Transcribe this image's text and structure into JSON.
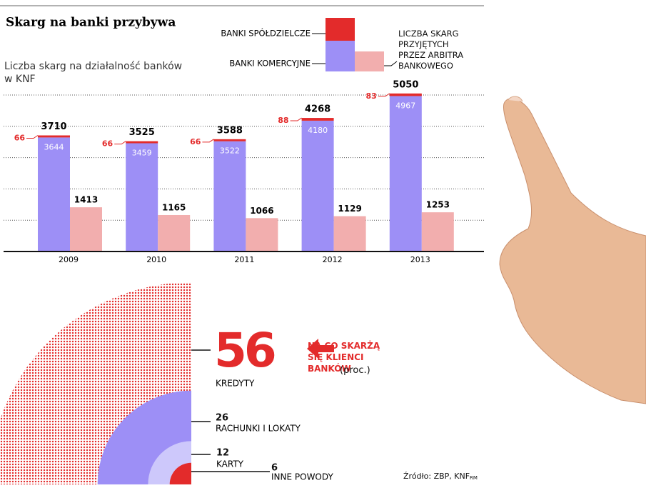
{
  "title": "Skarg na banki przybywa",
  "chart_data": [
    {
      "type": "bar",
      "subtitle": "Liczba skarg na działalność banków w KNF",
      "categories": [
        "2009",
        "2010",
        "2011",
        "2012",
        "2013"
      ],
      "series": [
        {
          "name": "BANKI KOMERCYJNE",
          "color": "#9d8ff6",
          "stack": "banki",
          "values": [
            3644,
            3459,
            3522,
            4180,
            4967
          ]
        },
        {
          "name": "BANKI SPÓŁDZIELCZE",
          "color": "#e32b2b",
          "stack": "banki",
          "values": [
            66,
            66,
            66,
            88,
            83
          ]
        },
        {
          "name": "LICZBA SKARG PRZYJĘTYCH PRZEZ ARBITRA BANKOWEGO",
          "color": "#f2aeae",
          "values": [
            1413,
            1165,
            1066,
            1129,
            1253
          ]
        }
      ],
      "totals": [
        3710,
        3525,
        3588,
        4268,
        5050
      ],
      "ylim": [
        0,
        5000
      ],
      "yticks": [
        0,
        1000,
        2000,
        3000,
        4000,
        5000
      ],
      "grid": true
    },
    {
      "type": "radial",
      "title": "NA CO SKARŻĄ SIĘ KLIENCI BANKÓW",
      "unit": "(proc.)",
      "categories": [
        "KREDYTY",
        "RACHUNKI I LOKATY",
        "KARTY",
        "INNE POWODY"
      ],
      "values": [
        56,
        26,
        12,
        6
      ],
      "colors": [
        "#e32b2b",
        "#9d8ff6",
        "#cdc8fb",
        "#e32b2b"
      ]
    }
  ],
  "source": "Źródło: ZBP, KNF",
  "author": "RM"
}
